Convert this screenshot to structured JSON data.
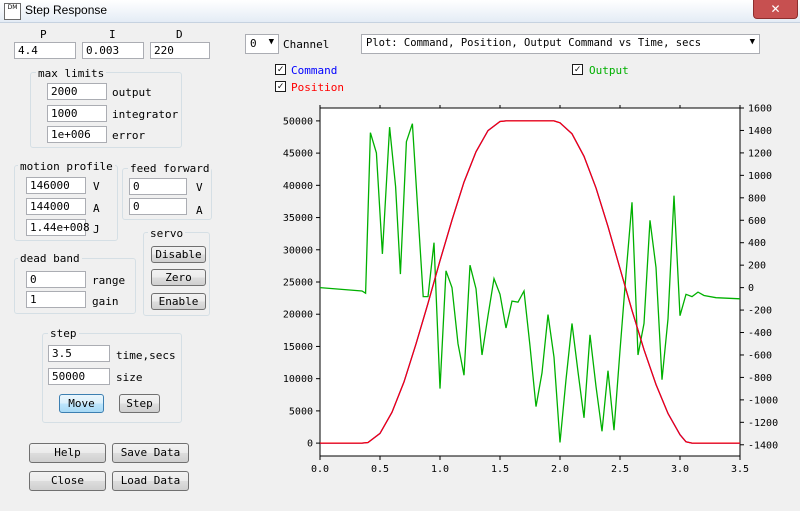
{
  "window": {
    "title": "Step Response",
    "icon_text": "DM"
  },
  "pid": {
    "p_label": "P",
    "i_label": "I",
    "d_label": "D",
    "p_value": "4.4",
    "i_value": "0.003",
    "d_value": "220"
  },
  "max_limits": {
    "title": "max limits",
    "output_value": "2000",
    "output_label": "output",
    "integrator_value": "1000",
    "integrator_label": "integrator",
    "error_value": "1e+006",
    "error_label": "error"
  },
  "motion_profile": {
    "title": "motion profile",
    "v_value": "146000",
    "v_label": "V",
    "a_value": "144000",
    "a_label": "A",
    "j_value": "1.44e+008",
    "j_label": "J"
  },
  "feed_forward": {
    "title": "feed forward",
    "v_value": "0",
    "v_label": "V",
    "a_value": "0",
    "a_label": "A"
  },
  "servo": {
    "title": "servo",
    "disable": "Disable",
    "zero": "Zero",
    "enable": "Enable"
  },
  "dead_band": {
    "title": "dead band",
    "range_value": "0",
    "range_label": "range",
    "gain_value": "1",
    "gain_label": "gain"
  },
  "step": {
    "title": "step",
    "time_value": "3.5",
    "time_label": "time,secs",
    "size_value": "50000",
    "size_label": "size",
    "move": "Move",
    "step_btn": "Step"
  },
  "buttons": {
    "help": "Help",
    "save_data": "Save Data",
    "close": "Close",
    "load_data": "Load Data"
  },
  "channel": {
    "value": "0",
    "label": "Channel"
  },
  "plot_select": {
    "value": "Plot: Command, Position, Output Command vs Time, secs"
  },
  "checkboxes": {
    "command": {
      "label": "Command",
      "checked": true,
      "color": "#0000ff"
    },
    "position": {
      "label": "Position",
      "checked": true,
      "color": "#ff0000"
    },
    "output": {
      "label": "Output",
      "checked": true,
      "color": "#00b000"
    }
  },
  "chart_data": {
    "type": "line",
    "title": "",
    "xlabel": "",
    "ylabel": "",
    "xlim": [
      0,
      3.5
    ],
    "ylim_left": [
      -2000,
      52000
    ],
    "ylim_right": [
      -1500,
      1600
    ],
    "x_ticks": [
      "0.0",
      "0.5",
      "1.0",
      "1.5",
      "2.0",
      "2.5",
      "3.0",
      "3.5"
    ],
    "y_left_ticks": [
      "0",
      "5000",
      "10000",
      "15000",
      "20000",
      "25000",
      "30000",
      "35000",
      "40000",
      "45000",
      "50000"
    ],
    "y_right_ticks": [
      "-1400",
      "-1200",
      "-1000",
      "-800",
      "-600",
      "-400",
      "-200",
      "0",
      "200",
      "400",
      "600",
      "800",
      "1000",
      "1200",
      "1400",
      "1600"
    ],
    "grid": false,
    "series": [
      {
        "name": "Command",
        "axis": "left",
        "color": "#0000ff",
        "x": [
          0,
          0.35,
          0.4,
          0.5,
          0.6,
          0.7,
          0.8,
          0.9,
          1.0,
          1.1,
          1.2,
          1.3,
          1.4,
          1.5,
          1.55,
          1.6,
          1.9,
          1.95,
          2.0,
          2.1,
          2.2,
          2.3,
          2.4,
          2.5,
          2.6,
          2.7,
          2.8,
          2.9,
          3.0,
          3.05,
          3.1,
          3.5
        ],
        "values": [
          0,
          0,
          100,
          1500,
          4800,
          9500,
          15400,
          21700,
          28300,
          34600,
          40500,
          45200,
          48500,
          49900,
          50000,
          50000,
          50000,
          50000,
          49700,
          48000,
          44500,
          39600,
          33600,
          27100,
          20600,
          14500,
          9100,
          4600,
          1300,
          200,
          0,
          0
        ]
      },
      {
        "name": "Position",
        "axis": "left",
        "color": "#ff0000",
        "x": [
          0,
          0.35,
          0.4,
          0.5,
          0.6,
          0.7,
          0.8,
          0.9,
          1.0,
          1.1,
          1.2,
          1.3,
          1.4,
          1.5,
          1.55,
          1.6,
          1.9,
          1.95,
          2.0,
          2.1,
          2.2,
          2.3,
          2.4,
          2.5,
          2.6,
          2.7,
          2.8,
          2.9,
          3.0,
          3.05,
          3.1,
          3.5
        ],
        "values": [
          0,
          0,
          100,
          1500,
          4800,
          9500,
          15400,
          21700,
          28300,
          34600,
          40500,
          45200,
          48500,
          49900,
          50000,
          50000,
          50000,
          50000,
          49700,
          48000,
          44500,
          39600,
          33600,
          27100,
          20600,
          14500,
          9100,
          4600,
          1300,
          200,
          0,
          0
        ]
      },
      {
        "name": "Output",
        "axis": "right",
        "color": "#00b000",
        "x": [
          0,
          0.35,
          0.38,
          0.42,
          0.47,
          0.52,
          0.58,
          0.63,
          0.67,
          0.72,
          0.77,
          0.82,
          0.86,
          0.9,
          0.95,
          1.0,
          1.05,
          1.1,
          1.15,
          1.2,
          1.25,
          1.3,
          1.35,
          1.4,
          1.45,
          1.5,
          1.55,
          1.6,
          1.65,
          1.7,
          1.75,
          1.8,
          1.85,
          1.9,
          1.95,
          2.0,
          2.05,
          2.1,
          2.15,
          2.2,
          2.25,
          2.3,
          2.35,
          2.4,
          2.45,
          2.5,
          2.55,
          2.6,
          2.65,
          2.7,
          2.75,
          2.8,
          2.85,
          2.9,
          2.95,
          3.0,
          3.05,
          3.1,
          3.15,
          3.2,
          3.3,
          3.5
        ],
        "values": [
          0,
          -30,
          -50,
          1380,
          1200,
          300,
          1430,
          900,
          120,
          1300,
          1460,
          600,
          -80,
          -80,
          400,
          -900,
          150,
          0,
          -500,
          -780,
          200,
          -10,
          -600,
          -250,
          80,
          -60,
          -360,
          -120,
          -130,
          -30,
          -520,
          -1060,
          -760,
          -240,
          -620,
          -1380,
          -820,
          -320,
          -750,
          -1160,
          -420,
          -880,
          -1280,
          -740,
          -1270,
          -560,
          120,
          760,
          -600,
          -320,
          600,
          180,
          -820,
          -280,
          820,
          -250,
          -60,
          -80,
          -40,
          -70,
          -90,
          -100
        ]
      }
    ]
  }
}
